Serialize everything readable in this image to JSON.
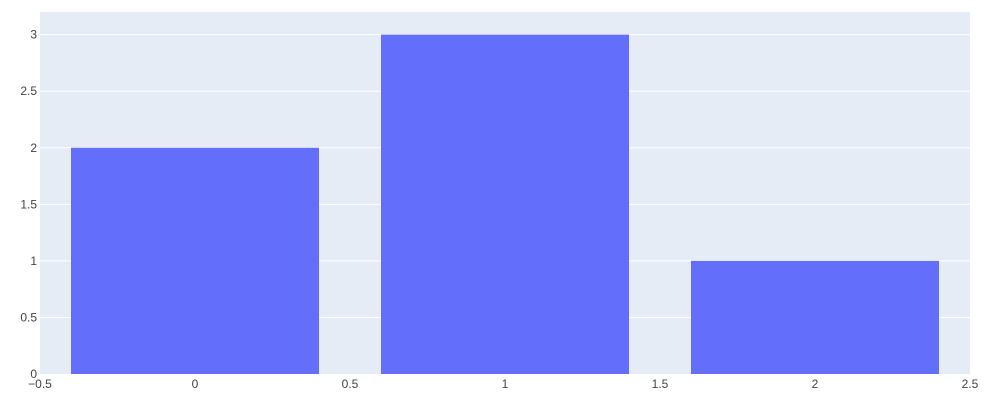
{
  "chart_data": {
    "type": "bar",
    "x": [
      0,
      1,
      2
    ],
    "values": [
      2,
      3,
      1
    ],
    "bar_width": 0.8,
    "xlim": [
      -0.5,
      2.5
    ],
    "ylim": [
      0,
      3.2
    ],
    "x_ticks": [
      -0.5,
      0,
      0.5,
      1,
      1.5,
      2,
      2.5
    ],
    "x_tick_labels": [
      "−0.5",
      "0",
      "0.5",
      "1",
      "1.5",
      "2",
      "2.5"
    ],
    "y_ticks": [
      0,
      0.5,
      1,
      1.5,
      2,
      2.5,
      3
    ],
    "y_tick_labels": [
      "0",
      "0.5",
      "1",
      "1.5",
      "2",
      "2.5",
      "3"
    ],
    "title": "",
    "xlabel": "",
    "ylabel": "",
    "grid": true,
    "colors": {
      "bar": "#636efa",
      "plot_bg": "#e5ecf6",
      "grid": "#ffffff",
      "text": "#444444"
    }
  }
}
